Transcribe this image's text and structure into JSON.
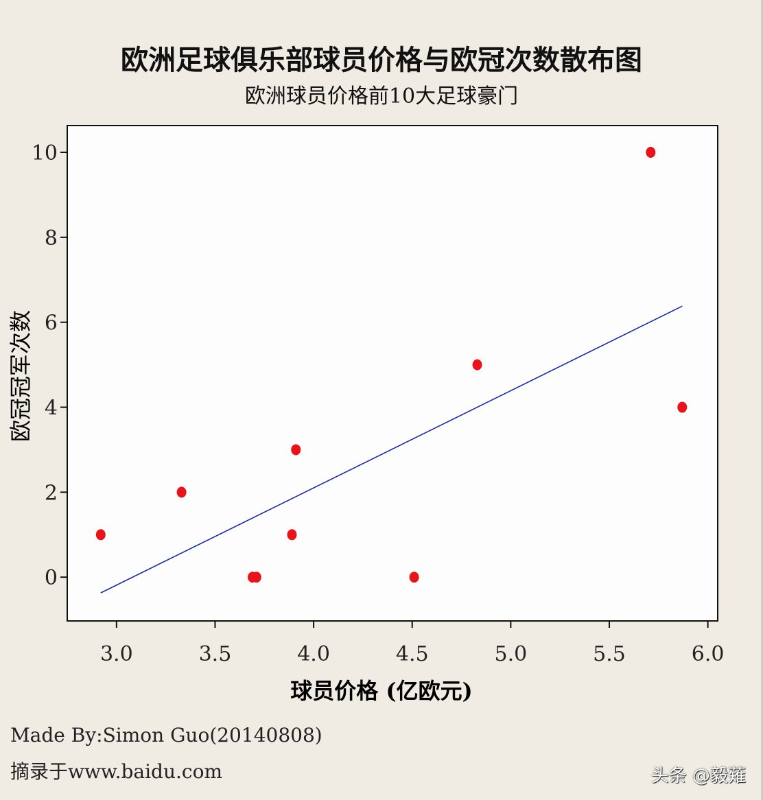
{
  "chart_data": {
    "type": "scatter",
    "title": "欧洲足球俱乐部球员价格与欧冠次数散布图",
    "subtitle": "欧洲球员价格前10大足球豪门",
    "xlabel": "球员价格 (亿欧元)",
    "ylabel": "欧冠冠军次数",
    "xlim": [
      2.75,
      6.05
    ],
    "ylim": [
      -1.03,
      10.63
    ],
    "xticks": [
      3.0,
      3.5,
      4.0,
      4.5,
      5.0,
      5.5,
      6.0
    ],
    "xtick_labels": [
      "3.0",
      "3.5",
      "4.0",
      "4.5",
      "5.0",
      "5.5",
      "6.0"
    ],
    "yticks": [
      0,
      2,
      4,
      6,
      8,
      10
    ],
    "ytick_labels": [
      "0",
      "2",
      "4",
      "6",
      "8",
      "10"
    ],
    "grid": false,
    "points": [
      {
        "x": 2.92,
        "y": 1
      },
      {
        "x": 3.33,
        "y": 2
      },
      {
        "x": 3.69,
        "y": 0
      },
      {
        "x": 3.71,
        "y": 0
      },
      {
        "x": 3.89,
        "y": 1
      },
      {
        "x": 3.91,
        "y": 3
      },
      {
        "x": 4.51,
        "y": 0
      },
      {
        "x": 4.83,
        "y": 5
      },
      {
        "x": 5.71,
        "y": 10
      },
      {
        "x": 5.87,
        "y": 4
      }
    ],
    "fit_line": {
      "x": [
        2.92,
        5.87
      ],
      "y": [
        -0.37,
        6.38
      ]
    },
    "colors": {
      "points": "#e8141c",
      "fit_line": "#1a2a9a",
      "plot_bg": "#fdfdfe",
      "page_bg": "#f0ece4"
    }
  },
  "footer": {
    "credit": "Made By:Simon Guo(20140808)",
    "source": "摘录于www.baidu.com",
    "watermark": "头条 @毅薙"
  }
}
